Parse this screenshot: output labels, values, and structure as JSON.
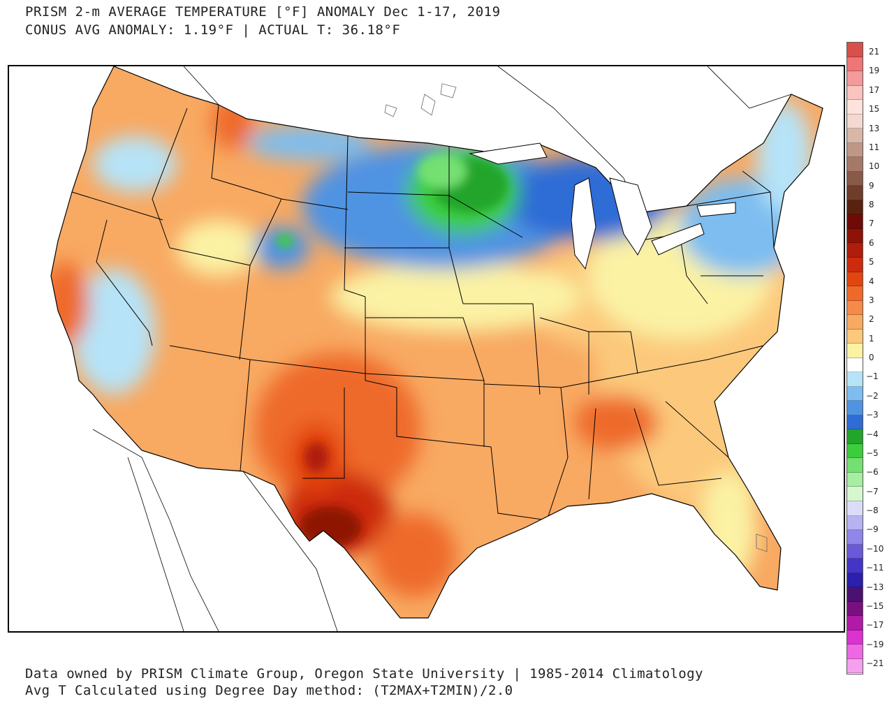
{
  "header": {
    "title_line1": "PRISM 2-m AVERAGE TEMPERATURE [°F] ANOMALY Dec 1-17, 2019",
    "title_line2": "CONUS AVG ANOMALY: 1.19°F | ACTUAL T: 36.18°F"
  },
  "footer": {
    "line1": "Data owned by PRISM Climate Group, Oregon State University | 1985-2014 Climatology",
    "line2": "Avg T Calculated using Degree Day method: (T2MAX+T2MIN)/2.0"
  },
  "colorbar": {
    "colors": [
      "#d8504c",
      "#ee7676",
      "#f39a9a",
      "#fbc3c0",
      "#fde3dc",
      "#f3d9cf",
      "#d8b6a8",
      "#bf9786",
      "#a57968",
      "#8a5a48",
      "#6f3d2a",
      "#592210",
      "#6e0b06",
      "#8e1306",
      "#af1e0b",
      "#cc2c0d",
      "#e3450f",
      "#ee6a2a",
      "#f58a49",
      "#f8a962",
      "#fcc97c",
      "#fbf2a4",
      "#ffffff",
      "#b6e3f8",
      "#7dbdf0",
      "#4f93e3",
      "#2e6cd6",
      "#21a52a",
      "#3ccd3c",
      "#75e072",
      "#a6eea2",
      "#d6f6d0",
      "#dcdcf8",
      "#b7b2f2",
      "#9085e8",
      "#6a5ad8",
      "#4535c6",
      "#2b1fab",
      "#4a1170",
      "#7a107e",
      "#b11aa8",
      "#dc32d0",
      "#ee68e4",
      "#f5a0ef"
    ],
    "tick_labels": [
      "21",
      "19",
      "17",
      "15",
      "13",
      "11",
      "10",
      "9",
      "8",
      "7",
      "6",
      "5",
      "4",
      "3",
      "2",
      "1",
      "0",
      "-1",
      "-2",
      "-3",
      "-4",
      "-5",
      "-6",
      "-7",
      "-8",
      "-9",
      "-10",
      "-11",
      "-13",
      "-15",
      "-17",
      "-19",
      "-21"
    ],
    "units": "°F"
  },
  "map": {
    "region": "CONUS",
    "regions": [
      {
        "name": "Northern Plains / Upper Midwest",
        "anomaly_band": "-4 to -5",
        "color": "#3ccd3c"
      },
      {
        "name": "Northern tier / Great Lakes",
        "anomaly_band": "-2 to -3",
        "color": "#2e6cd6"
      },
      {
        "name": "New England / Northeast",
        "anomaly_band": "-1 to -2",
        "color": "#7dbdf0"
      },
      {
        "name": "West / Southwest",
        "anomaly_band": "1 to 3",
        "color": "#f8a962"
      },
      {
        "name": "Texas / Southern Plains",
        "anomaly_band": "4 to 8",
        "color": "#e3450f"
      },
      {
        "name": "Southeast / Ohio Valley",
        "anomaly_band": "1 to 3",
        "color": "#fcc97c"
      }
    ]
  }
}
